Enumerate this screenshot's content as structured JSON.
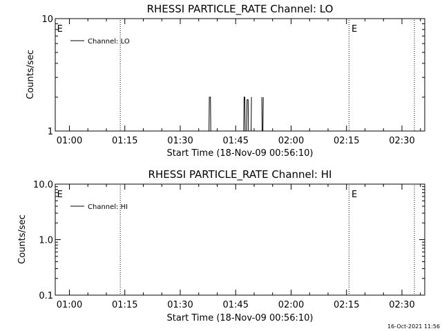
{
  "timestamp": "16-Oct-2021 11:56",
  "chart_data": [
    {
      "type": "line",
      "title": "RHESSI PARTICLE_RATE Channel: LO",
      "xlabel": "Start Time (18-Nov-09 00:56:10)",
      "ylabel": "Counts/sec",
      "yscale": "log",
      "ylim": [
        1,
        10
      ],
      "xlim_minutes_after_start": [
        0,
        100
      ],
      "x_ticks": [
        {
          "label": "01:00",
          "t": 3.83
        },
        {
          "label": "01:15",
          "t": 18.83
        },
        {
          "label": "01:30",
          "t": 33.83
        },
        {
          "label": "01:45",
          "t": 48.83
        },
        {
          "label": "02:00",
          "t": 63.83
        },
        {
          "label": "02:15",
          "t": 78.83
        },
        {
          "label": "02:30",
          "t": 93.83
        }
      ],
      "y_ticks": [
        {
          "label": "10",
          "v": 10
        },
        {
          "label": "1",
          "v": 1
        }
      ],
      "vlines": [
        17.6,
        79.5,
        97.2
      ],
      "event_marks": [
        {
          "label": "E",
          "t": 0.3
        },
        {
          "label": "E",
          "t": 80.0
        }
      ],
      "legend": "Channel: LO",
      "series": [
        {
          "name": "Channel: LO",
          "x": [
            41.6,
            41.7,
            42.0,
            42.1,
            51.0,
            51.1,
            51.3,
            51.4,
            51.8,
            51.9,
            52.2,
            52.3,
            53.0,
            53.1,
            55.9,
            56.0,
            56.2,
            56.3
          ],
          "y": [
            1,
            2,
            2,
            1,
            1,
            2,
            2,
            1,
            1,
            1.9,
            1.9,
            1,
            1,
            2,
            2,
            1,
            1,
            2
          ],
          "breaks_after": [
            3,
            7,
            11,
            13
          ]
        }
      ]
    },
    {
      "type": "line",
      "title": "RHESSI PARTICLE_RATE Channel: HI",
      "xlabel": "Start Time (18-Nov-09 00:56:10)",
      "ylabel": "Counts/sec",
      "yscale": "log",
      "ylim": [
        0.1,
        10
      ],
      "xlim_minutes_after_start": [
        0,
        100
      ],
      "x_ticks": [
        {
          "label": "01:00",
          "t": 3.83
        },
        {
          "label": "01:15",
          "t": 18.83
        },
        {
          "label": "01:30",
          "t": 33.83
        },
        {
          "label": "01:45",
          "t": 48.83
        },
        {
          "label": "02:00",
          "t": 63.83
        },
        {
          "label": "02:15",
          "t": 78.83
        },
        {
          "label": "02:30",
          "t": 93.83
        }
      ],
      "y_ticks": [
        {
          "label": "10.0",
          "v": 10
        },
        {
          "label": "1.0",
          "v": 1
        },
        {
          "label": "0.1",
          "v": 0.1
        }
      ],
      "vlines": [
        17.6,
        79.5,
        97.2
      ],
      "event_marks": [
        {
          "label": "E",
          "t": 0.3
        },
        {
          "label": "E",
          "t": 80.0
        }
      ],
      "legend": "Channel: HI",
      "series": [
        {
          "name": "Channel: HI",
          "x": [],
          "y": []
        }
      ]
    }
  ]
}
